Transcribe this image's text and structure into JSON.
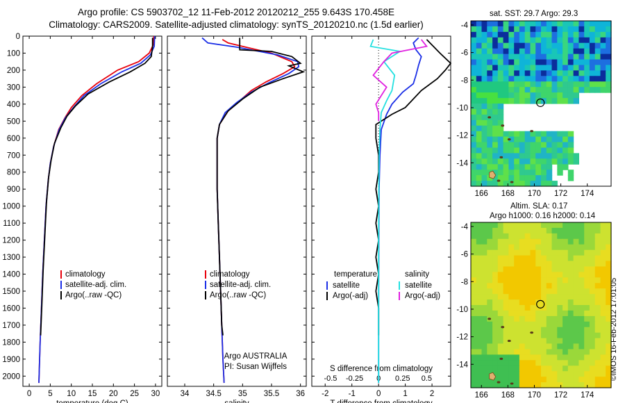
{
  "header": {
    "title_line1": "Argo profile: CS 5903702_12 11-Feb-2012 20120212_255 9.643S 170.458E",
    "title_line2": "Climatology: CARS2009. Satellite-adjusted climatology: synTS_20120210.nc (1.5d earlier)"
  },
  "credit": "©IMOS 16-Feb-2012 17:01:05",
  "colors": {
    "clim": "#e8000b",
    "sat": "#1a2ee6",
    "argo": "#000000",
    "sal_sat": "#22e0e0",
    "sal_argo": "#e020e0"
  },
  "chart_data": [
    {
      "type": "line",
      "xlabel": "temperature (deg C)",
      "ylabel": "",
      "xlim": [
        -1.5,
        31.5
      ],
      "ylim": [
        2060,
        0
      ],
      "xticks": [
        0,
        5,
        10,
        15,
        20,
        25,
        30
      ],
      "yticks": [
        0,
        100,
        200,
        300,
        400,
        500,
        600,
        700,
        800,
        900,
        1000,
        1100,
        1200,
        1300,
        1400,
        1500,
        1600,
        1700,
        1800,
        1900,
        2000
      ],
      "legend": [
        "climatology",
        "satellite-adj. clim.",
        "Argo(..raw -QC)"
      ],
      "legend_position": "lower-center",
      "series": [
        {
          "name": "climatology",
          "color": "clim",
          "points": [
            [
              29.6,
              0
            ],
            [
              29.5,
              50
            ],
            [
              28.5,
              100
            ],
            [
              26,
              150
            ],
            [
              21,
              200
            ],
            [
              16,
              280
            ],
            [
              12.5,
              350
            ],
            [
              10,
              420
            ],
            [
              8.5,
              480
            ],
            [
              7,
              550
            ],
            [
              5.8,
              650
            ],
            [
              5,
              750
            ],
            [
              4.5,
              850
            ],
            [
              4,
              1000
            ],
            [
              3.6,
              1200
            ],
            [
              3.2,
              1400
            ],
            [
              2.9,
              1600
            ],
            [
              2.6,
              1800
            ],
            [
              2.3,
              2040
            ]
          ]
        },
        {
          "name": "satellite-adj. clim.",
          "color": "sat",
          "points": [
            [
              29.8,
              0
            ],
            [
              29.7,
              60
            ],
            [
              28.8,
              110
            ],
            [
              26.5,
              160
            ],
            [
              22,
              210
            ],
            [
              17,
              280
            ],
            [
              13,
              350
            ],
            [
              10.5,
              420
            ],
            [
              8.6,
              480
            ],
            [
              7.1,
              550
            ],
            [
              5.8,
              650
            ],
            [
              5,
              750
            ],
            [
              4.5,
              850
            ],
            [
              4,
              1000
            ],
            [
              3.6,
              1200
            ],
            [
              3.2,
              1400
            ],
            [
              2.9,
              1600
            ],
            [
              2.6,
              1800
            ],
            [
              2.3,
              2040
            ]
          ]
        },
        {
          "name": "Argo(..raw -QC)",
          "color": "argo",
          "points": [
            [
              29.3,
              10
            ],
            [
              29.3,
              60
            ],
            [
              29,
              120
            ],
            [
              27.5,
              160
            ],
            [
              24,
              210
            ],
            [
              19,
              270
            ],
            [
              14,
              340
            ],
            [
              11,
              410
            ],
            [
              9,
              470
            ],
            [
              7.5,
              540
            ],
            [
              6,
              630
            ],
            [
              5.2,
              730
            ],
            [
              4.6,
              830
            ],
            [
              4.1,
              980
            ],
            [
              3.7,
              1180
            ],
            [
              3.3,
              1380
            ],
            [
              3,
              1580
            ],
            [
              2.7,
              1760
            ]
          ]
        }
      ]
    },
    {
      "type": "line",
      "xlabel": "salinity",
      "ylabel": "",
      "xlim": [
        33.7,
        36.1
      ],
      "ylim": [
        2060,
        0
      ],
      "xticks": [
        34,
        34.5,
        35,
        35.5,
        36
      ],
      "legend": [
        "climatology",
        "satellite-adj. clim.",
        "Argo(..raw -QC)"
      ],
      "legend_position": "lower-center",
      "annotation": [
        "Argo AUSTRALIA",
        "PI: Susan Wijffels"
      ],
      "series": [
        {
          "name": "climatology",
          "color": "clim",
          "points": [
            [
              34.65,
              20
            ],
            [
              34.75,
              40
            ],
            [
              35,
              60
            ],
            [
              35.5,
              100
            ],
            [
              35.85,
              150
            ],
            [
              35.9,
              180
            ],
            [
              35.7,
              220
            ],
            [
              35.4,
              270
            ],
            [
              35.15,
              320
            ],
            [
              34.95,
              380
            ],
            [
              34.75,
              440
            ],
            [
              34.6,
              520
            ],
            [
              34.56,
              600
            ],
            [
              34.56,
              700
            ],
            [
              34.56,
              900
            ],
            [
              34.58,
              1100
            ],
            [
              34.6,
              1300
            ],
            [
              34.62,
              1500
            ],
            [
              34.64,
              1700
            ],
            [
              34.66,
              1900
            ],
            [
              34.68,
              2040
            ]
          ]
        },
        {
          "name": "satellite-adj. clim.",
          "color": "sat",
          "points": [
            [
              34.3,
              10
            ],
            [
              34.4,
              40
            ],
            [
              34.9,
              65
            ],
            [
              35.6,
              110
            ],
            [
              35.95,
              150
            ],
            [
              35.97,
              180
            ],
            [
              35.8,
              220
            ],
            [
              35.45,
              275
            ],
            [
              35.15,
              330
            ],
            [
              34.9,
              390
            ],
            [
              34.7,
              450
            ],
            [
              34.6,
              520
            ],
            [
              34.56,
              600
            ],
            [
              34.56,
              700
            ],
            [
              34.56,
              900
            ],
            [
              34.58,
              1100
            ],
            [
              34.6,
              1300
            ],
            [
              34.62,
              1500
            ],
            [
              34.64,
              1700
            ],
            [
              34.66,
              1900
            ],
            [
              34.68,
              2040
            ]
          ]
        },
        {
          "name": "Argo(..raw -QC)",
          "color": "argo",
          "points": [
            [
              34.95,
              10
            ],
            [
              34.95,
              80
            ],
            [
              35.5,
              90
            ],
            [
              35.85,
              120
            ],
            [
              36,
              160
            ],
            [
              35.8,
              175
            ],
            [
              36.05,
              210
            ],
            [
              35.7,
              250
            ],
            [
              35.3,
              300
            ],
            [
              35,
              370
            ],
            [
              34.75,
              440
            ],
            [
              34.6,
              520
            ],
            [
              34.56,
              600
            ],
            [
              34.56,
              700
            ],
            [
              34.56,
              900
            ],
            [
              34.58,
              1100
            ],
            [
              34.6,
              1300
            ],
            [
              34.62,
              1500
            ],
            [
              34.64,
              1700
            ],
            [
              34.66,
              1760
            ]
          ]
        }
      ]
    },
    {
      "type": "line",
      "xlabel": "T difference from climatology",
      "x2label": "S difference from climatology",
      "ylabel": "",
      "xlim": [
        -2.5,
        2.7
      ],
      "ylim": [
        2060,
        0
      ],
      "xticks": [
        -2,
        -1,
        0,
        1,
        2
      ],
      "x2ticks": [
        -0.5,
        -0.25,
        0,
        0.25,
        0.5
      ],
      "legend_headers": [
        "temperature",
        "salinity"
      ],
      "legend": [
        "satellite",
        "Argo(-adj)",
        "satellite",
        "Argo(-adj)"
      ],
      "legend_position": "lower-center",
      "series": [
        {
          "name": "satellite",
          "color": "sat",
          "points": [
            [
              1.5,
              10
            ],
            [
              1.3,
              40
            ],
            [
              1.4,
              80
            ],
            [
              1.6,
              120
            ],
            [
              1.5,
              170
            ],
            [
              1.4,
              230
            ],
            [
              1.3,
              280
            ],
            [
              0.9,
              330
            ],
            [
              0.5,
              400
            ],
            [
              0.3,
              460
            ],
            [
              0.1,
              550
            ],
            [
              0.05,
              700
            ],
            [
              0.02,
              900
            ],
            [
              0.01,
              1200
            ],
            [
              0,
              1600
            ],
            [
              0,
              2040
            ]
          ]
        },
        {
          "name": "Argo(-adj)",
          "color": "argo",
          "points": [
            [
              1.8,
              20
            ],
            [
              2.3,
              100
            ],
            [
              2.7,
              160
            ],
            [
              2.5,
              200
            ],
            [
              2.2,
              250
            ],
            [
              1.6,
              320
            ],
            [
              1,
              420
            ],
            [
              0.5,
              460
            ],
            [
              -0.1,
              520
            ],
            [
              -0.1,
              600
            ],
            [
              0,
              700
            ],
            [
              0,
              800
            ],
            [
              -0.1,
              900
            ],
            [
              0,
              1000
            ],
            [
              -0.1,
              1100
            ],
            [
              0,
              1200
            ],
            [
              -0.1,
              1300
            ],
            [
              0,
              1400
            ],
            [
              -0.1,
              1500
            ],
            [
              0,
              1600
            ],
            [
              0,
              1700
            ],
            [
              0,
              1760
            ]
          ]
        },
        {
          "name": "satellite",
          "color": "sal_sat",
          "points": [
            [
              -0.2,
              20
            ],
            [
              -0.3,
              60
            ],
            [
              0.8,
              90
            ],
            [
              0.2,
              150
            ],
            [
              0.6,
              230
            ],
            [
              0.5,
              320
            ],
            [
              0.3,
              380
            ],
            [
              0.1,
              450
            ],
            [
              0.05,
              550
            ],
            [
              0.02,
              700
            ],
            [
              0.01,
              900
            ],
            [
              0,
              1200
            ],
            [
              0,
              1600
            ],
            [
              0,
              2040
            ]
          ]
        },
        {
          "name": "Argo(-adj)",
          "color": "sal_argo",
          "points": [
            [
              1.6,
              20
            ],
            [
              1.8,
              60
            ],
            [
              0.5,
              100
            ],
            [
              0.2,
              150
            ],
            [
              -0.2,
              230
            ],
            [
              0.3,
              300
            ],
            [
              -0.1,
              400
            ],
            [
              0,
              450
            ],
            [
              0,
              500
            ]
          ]
        }
      ]
    }
  ],
  "maps": {
    "sst": {
      "title": "sat. SST: 29.7 Argo: 29.3",
      "xticks": [
        166,
        168,
        170,
        172,
        174
      ],
      "yticks": [
        -4,
        -6,
        -8,
        -10,
        -12,
        -14
      ]
    },
    "sla": {
      "title_line1": "Altim. SLA: 0.17",
      "title_line2": "Argo h1000: 0.16 h2000: 0.14",
      "xticks": [
        166,
        168,
        170,
        172,
        174
      ],
      "yticks": [
        -4,
        -6,
        -8,
        -10,
        -12,
        -14
      ]
    }
  }
}
